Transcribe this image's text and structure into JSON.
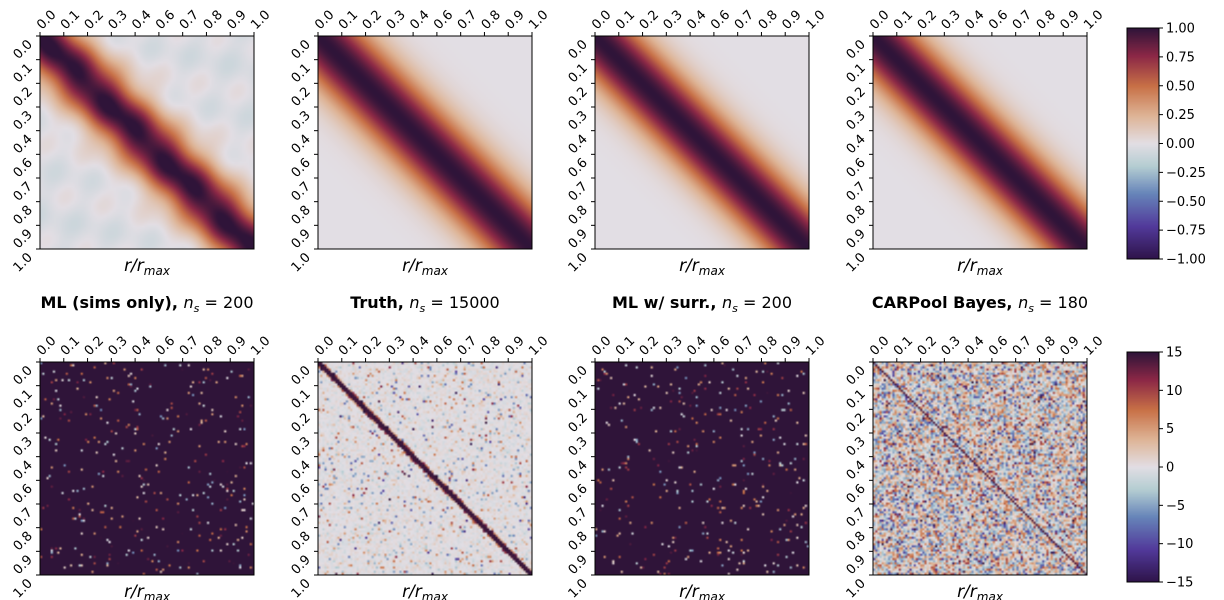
{
  "chart_data": {
    "type": "heatmap",
    "tick_labels": [
      "0.0",
      "0.1",
      "0.2",
      "0.3",
      "0.4",
      "0.6",
      "0.7",
      "0.8",
      "0.9",
      "1.0"
    ],
    "xlabel": "r/r",
    "xlabel_sub": "max",
    "titles": [
      {
        "bold": "ML (sims only),",
        "math": "n",
        "sub": "s",
        "value": "= 200"
      },
      {
        "bold": "Truth,",
        "math": "n",
        "sub": "s",
        "value": "= 15000"
      },
      {
        "bold": "ML w/ surr.,",
        "math": "n",
        "sub": "s",
        "value": "= 200"
      },
      {
        "bold": "CARPool Bayes,",
        "math": "n",
        "sub": "s",
        "value": "= 180"
      }
    ],
    "rows": [
      {
        "kind": "correlation",
        "colorbar": {
          "min": -1.0,
          "max": 1.0,
          "ticks": [
            1.0,
            0.75,
            0.5,
            0.25,
            0.0,
            -0.25,
            -0.5,
            -0.75,
            -1.0
          ],
          "tick_labels": [
            "1.00",
            "0.75",
            "0.50",
            "0.25",
            "0.00",
            "−0.25",
            "−0.50",
            "−0.75",
            "−1.00"
          ]
        },
        "panels": [
          {
            "pattern": "smooth",
            "correlation_length": 0.13,
            "noise": 0.06
          },
          {
            "pattern": "smooth",
            "correlation_length": 0.16,
            "noise": 0.0
          },
          {
            "pattern": "smooth",
            "correlation_length": 0.15,
            "noise": 0.0
          },
          {
            "pattern": "smooth",
            "correlation_length": 0.15,
            "noise": 0.0
          }
        ]
      },
      {
        "kind": "precision",
        "colorbar": {
          "min": -15,
          "max": 15,
          "ticks": [
            15,
            10,
            5,
            0,
            -5,
            -10,
            -15
          ],
          "tick_labels": [
            "15",
            "10",
            "5",
            "0",
            "−5",
            "−10",
            "−15"
          ]
        },
        "panels": [
          {
            "pattern": "saturated",
            "diagonal_width": 0.0
          },
          {
            "pattern": "sparse_diagonal",
            "diagonal_width": 0.018
          },
          {
            "pattern": "saturated",
            "diagonal_width": 0.0
          },
          {
            "pattern": "noisy_diagonal",
            "diagonal_width": 0.006
          }
        ]
      }
    ],
    "grid": false,
    "colormap": "twilight_shifted"
  }
}
